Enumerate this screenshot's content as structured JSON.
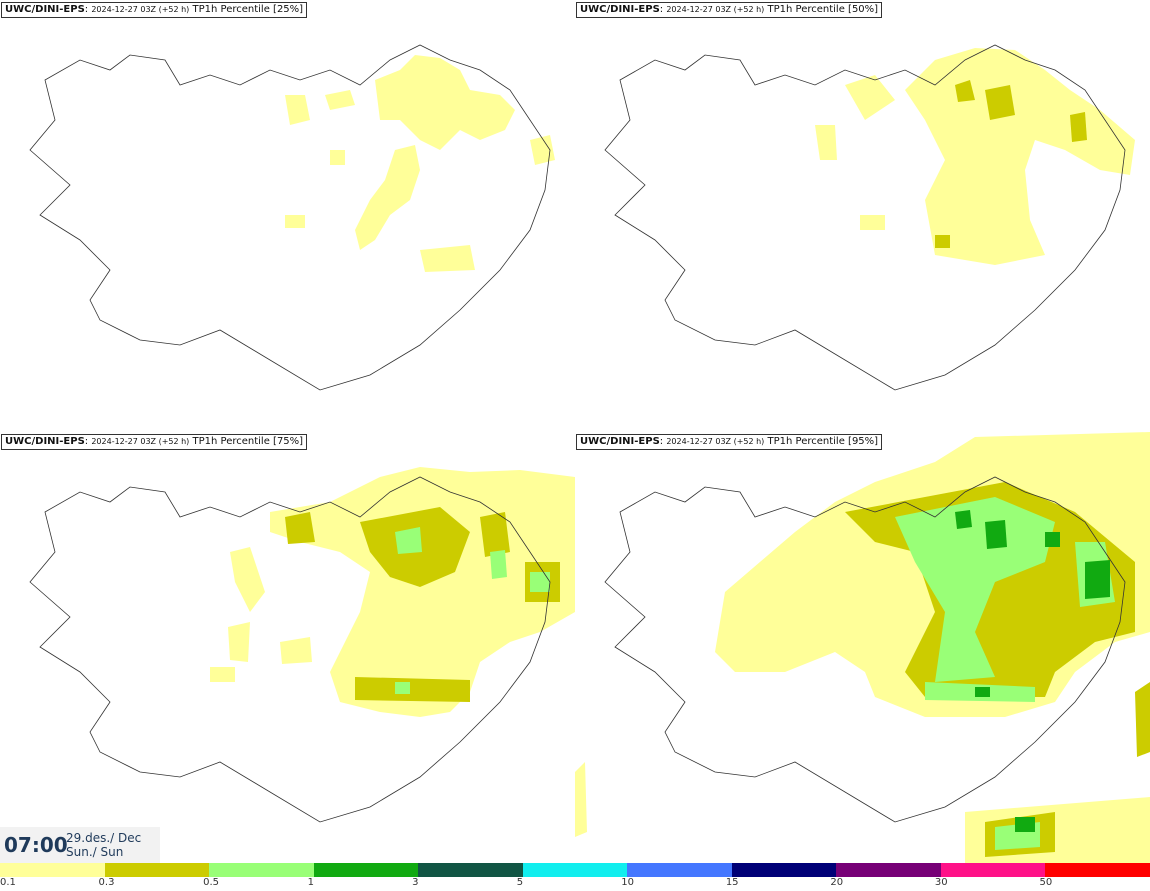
{
  "panels": [
    {
      "model": "UWC/DINI-EPS",
      "run": "2024-12-27 03Z (+52 h)",
      "param": "TP1h Percentile",
      "pct": "[25%]"
    },
    {
      "model": "UWC/DINI-EPS",
      "run": "2024-12-27 03Z (+52 h)",
      "param": "TP1h Percentile",
      "pct": "[50%]"
    },
    {
      "model": "UWC/DINI-EPS",
      "run": "2024-12-27 03Z (+52 h)",
      "param": "TP1h Percentile",
      "pct": "[75%]"
    },
    {
      "model": "UWC/DINI-EPS",
      "run": "2024-12-27 03Z (+52 h)",
      "param": "TP1h Percentile",
      "pct": "[95%]"
    }
  ],
  "valid_time": {
    "time": "07:00",
    "date_line": "29.des./ Dec",
    "day_line": "Sun./ Sun"
  },
  "legend": {
    "colors": [
      "#ffff99",
      "#cccc00",
      "#99ff77",
      "#11aa11",
      "#115544",
      "#11eeee",
      "#4477ff",
      "#000077",
      "#770077",
      "#ff1188",
      "#ff0000"
    ],
    "ticks": [
      "0.1",
      "0.3",
      "0.5",
      "1",
      "3",
      "5",
      "10",
      "15",
      "20",
      "30",
      "50"
    ]
  }
}
